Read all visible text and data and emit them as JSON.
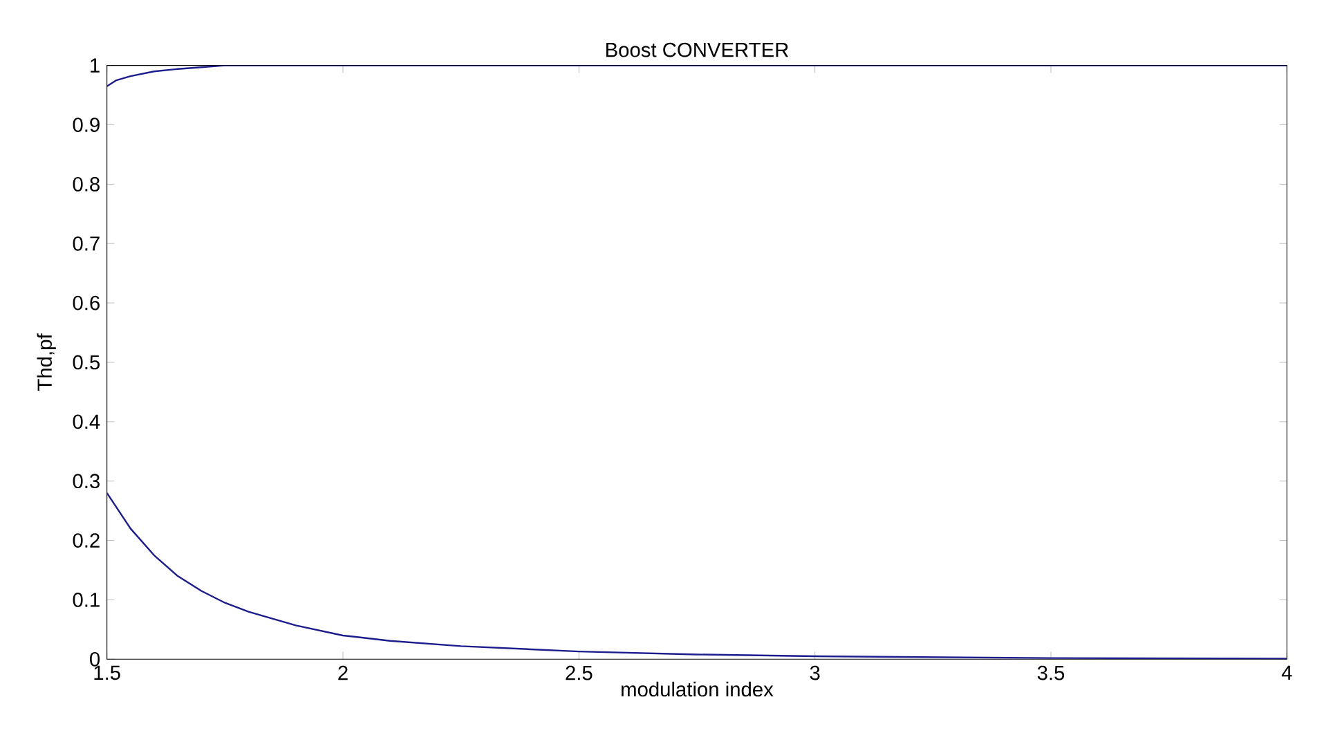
{
  "chart_data": {
    "type": "line",
    "title": "Boost CONVERTER",
    "xlabel": "modulation index",
    "ylabel": "Thd,pf",
    "xlim": [
      1.5,
      4
    ],
    "ylim": [
      0,
      1
    ],
    "xticks": [
      1.5,
      2,
      2.5,
      3,
      3.5,
      4
    ],
    "yticks": [
      0,
      0.1,
      0.2,
      0.3,
      0.4,
      0.5,
      0.6,
      0.7,
      0.8,
      0.9,
      1
    ],
    "grid": false,
    "marker": "none",
    "line_style": "solid",
    "series": [
      {
        "color": "#1c1c8c",
        "x": [
          1.5,
          1.52,
          1.55,
          1.6,
          1.65,
          1.7,
          1.75,
          2,
          2.5,
          3,
          3.5,
          4
        ],
        "values": [
          0.965,
          0.975,
          0.982,
          0.99,
          0.994,
          0.997,
          1,
          1,
          1,
          1,
          1,
          1
        ]
      },
      {
        "color": "#1c1c8c",
        "x": [
          1.5,
          1.55,
          1.6,
          1.65,
          1.7,
          1.75,
          1.8,
          1.9,
          2,
          2.1,
          2.25,
          2.5,
          2.75,
          3,
          3.5,
          4
        ],
        "values": [
          0.28,
          0.22,
          0.175,
          0.14,
          0.115,
          0.095,
          0.08,
          0.057,
          0.04,
          0.031,
          0.022,
          0.013,
          0.008,
          0.005,
          0.002,
          0.001
        ]
      }
    ]
  }
}
